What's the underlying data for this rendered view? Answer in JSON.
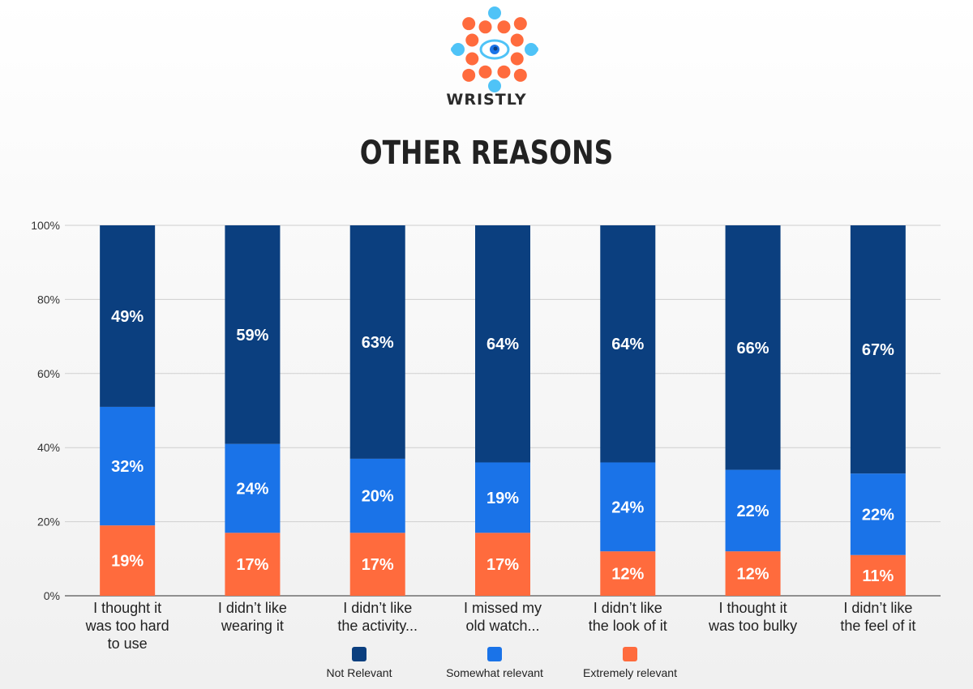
{
  "brand": {
    "name": "WRISTLY"
  },
  "colors": {
    "not_relevant": "#0b3f7f",
    "somewhat_relevant": "#1a73e8",
    "extremely_relevant": "#ff6b3d",
    "logo_orange": "#ff6b3d",
    "logo_blue": "#4fc3f7"
  },
  "chart_data": {
    "type": "bar",
    "stacked": true,
    "title": "OTHER REASONS",
    "categories": [
      [
        "I thought it",
        "was too hard",
        "to use"
      ],
      [
        "I didn’t like",
        "wearing it"
      ],
      [
        "I didn’t like",
        "the activity..."
      ],
      [
        "I missed my",
        "old watch..."
      ],
      [
        "I didn’t like",
        "the look of it"
      ],
      [
        "I thought it",
        "was too bulky"
      ],
      [
        "I didn’t like",
        "the feel of it"
      ]
    ],
    "series": [
      {
        "name": "Extremely relevant",
        "color": "#ff6b3d",
        "values": [
          19,
          17,
          17,
          17,
          12,
          12,
          11
        ]
      },
      {
        "name": "Somewhat relevant",
        "color": "#1a73e8",
        "values": [
          32,
          24,
          20,
          19,
          24,
          22,
          22
        ]
      },
      {
        "name": "Not Relevant",
        "color": "#0b3f7f",
        "values": [
          49,
          59,
          63,
          64,
          64,
          66,
          67
        ]
      }
    ],
    "ylim": [
      0,
      100
    ],
    "yticks": [
      "0%",
      "20%",
      "40%",
      "60%",
      "80%",
      "100%"
    ],
    "grid": true,
    "legend_position": "bottom",
    "legend": [
      "Not Relevant",
      "Somewhat relevant",
      "Extremely relevant"
    ]
  }
}
